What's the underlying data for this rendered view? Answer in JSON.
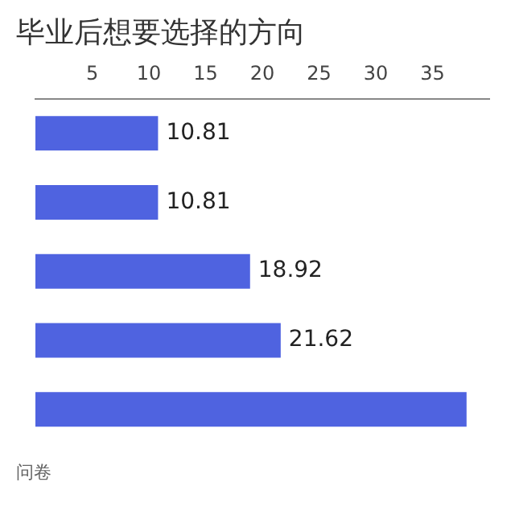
{
  "chart_data": {
    "type": "bar",
    "orientation": "horizontal",
    "title": "毕业后想要选择的方向",
    "annotations": [
      "问卷"
    ],
    "categories": [
      null,
      null,
      null,
      null,
      null
    ],
    "values": [
      10.81,
      10.81,
      18.92,
      21.62,
      38
    ],
    "value_labels": [
      "10.81",
      "10.81",
      "18.92",
      "21.62",
      null
    ],
    "color": "#4f63e0",
    "xlim": [
      0,
      40
    ],
    "xticks": [
      5,
      10,
      15,
      20,
      25,
      30,
      35
    ],
    "grid": false,
    "legend": false
  }
}
